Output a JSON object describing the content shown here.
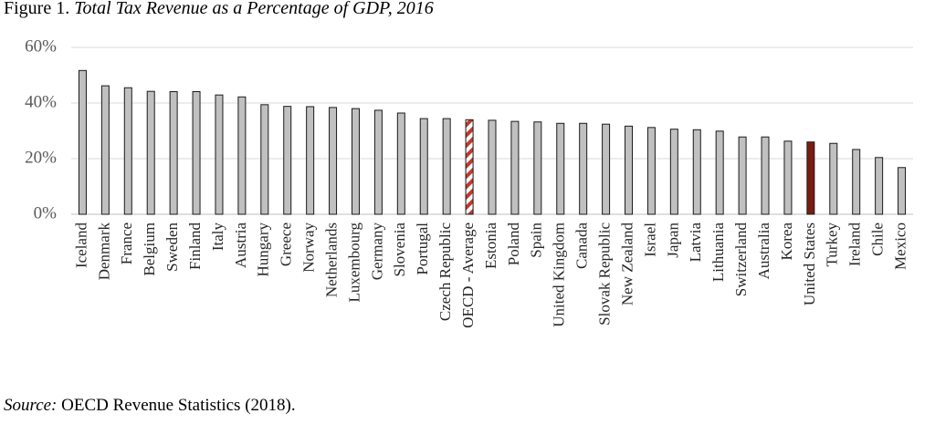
{
  "chart_data": {
    "type": "bar",
    "figure_label": "Figure 1.",
    "title": "Total Tax Revenue as a Percentage of GDP, 2016",
    "source_label": "Source:",
    "source": "OECD Revenue Statistics (2018).",
    "categories": [
      "Iceland",
      "Denmark",
      "France",
      "Belgium",
      "Sweden",
      "Finland",
      "Italy",
      "Austria",
      "Hungary",
      "Greece",
      "Norway",
      "Netherlands",
      "Luxembourg",
      "Germany",
      "Slovenia",
      "Portugal",
      "Czech Republic",
      "OECD - Average",
      "Estonia",
      "Poland",
      "Spain",
      "United Kingdom",
      "Canada",
      "Slovak Republic",
      "New Zealand",
      "Israel",
      "Japan",
      "Latvia",
      "Lithuania",
      "Switzerland",
      "Australia",
      "Korea",
      "United States",
      "Turkey",
      "Ireland",
      "Chile",
      "Mexico"
    ],
    "values": [
      51.7,
      46.2,
      45.5,
      44.2,
      44.1,
      44.1,
      42.9,
      42.2,
      39.4,
      38.8,
      38.7,
      38.4,
      38.0,
      37.4,
      36.4,
      34.4,
      34.4,
      34.0,
      33.8,
      33.4,
      33.2,
      32.7,
      32.7,
      32.4,
      31.7,
      31.2,
      30.6,
      30.4,
      29.9,
      27.8,
      27.8,
      26.3,
      26.0,
      25.5,
      23.3,
      20.4,
      16.8
    ],
    "color": "#c0c0c0",
    "highlight_colors": {
      "17": "#c0392b",
      "32": "#7b1c12"
    },
    "hatched": 17,
    "ylim": [
      0,
      60
    ],
    "yticks": [
      {
        "value": 0,
        "label": "0%"
      },
      {
        "value": 20,
        "label": "20%"
      },
      {
        "value": 40,
        "label": "40%"
      },
      {
        "value": 60,
        "label": "60%"
      }
    ],
    "grid": true
  }
}
